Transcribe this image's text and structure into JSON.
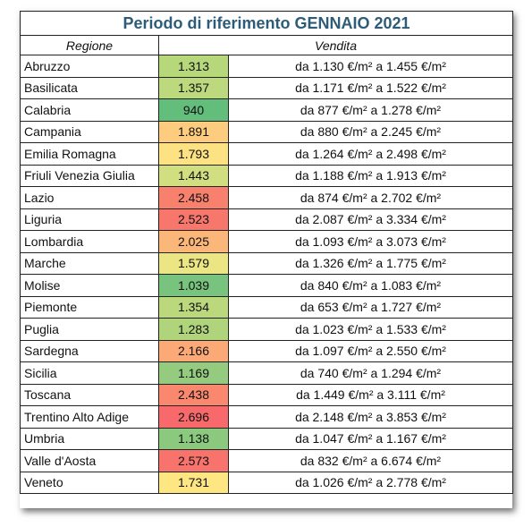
{
  "table": {
    "title": "Periodo di riferimento GENNAIO 2021",
    "headers": {
      "region": "Regione",
      "sale": "Vendita"
    },
    "rows": [
      {
        "region": "Abruzzo",
        "price": "1.313",
        "range": "da 1.130 €/m² a 1.455 €/m²",
        "color": "#b6d77a"
      },
      {
        "region": "Basilicata",
        "price": "1.357",
        "range": "da 1.171 €/m² a 1.522 €/m²",
        "color": "#bdd97d"
      },
      {
        "region": "Calabria",
        "price": "940",
        "range": "da 877 €/m² a 1.278 €/m²",
        "color": "#63be7b"
      },
      {
        "region": "Campania",
        "price": "1.891",
        "range": "da 880 €/m² a 2.245 €/m²",
        "color": "#fdcc7e"
      },
      {
        "region": "Emilia Romagna",
        "price": "1.793",
        "range": "da 1.264 €/m² a 2.498 €/m²",
        "color": "#fde283"
      },
      {
        "region": "Friuli Venezia Giulia",
        "price": "1.443",
        "range": "da 1.188 €/m² a 1.913 €/m²",
        "color": "#d1df81"
      },
      {
        "region": "Lazio",
        "price": "2.458",
        "range": "da 874 €/m² a 2.702 €/m²",
        "color": "#f8816d"
      },
      {
        "region": "Liguria",
        "price": "2.523",
        "range": "da 2.087 €/m² a 3.334 €/m²",
        "color": "#f8776c"
      },
      {
        "region": "Lombardia",
        "price": "2.025",
        "range": "da 1.093 €/m² a 3.073 €/m²",
        "color": "#fbb679"
      },
      {
        "region": "Marche",
        "price": "1.579",
        "range": "da 1.326 €/m² a 1.775 €/m²",
        "color": "#ebe584"
      },
      {
        "region": "Molise",
        "price": "1.039",
        "range": "da 840 €/m² a 1.083 €/m²",
        "color": "#78c37d"
      },
      {
        "region": "Piemonte",
        "price": "1.354",
        "range": "da 653 €/m² a 1.727 €/m²",
        "color": "#bcd87d"
      },
      {
        "region": "Puglia",
        "price": "1.283",
        "range": "da 1.023 €/m² a 1.533 €/m²",
        "color": "#afd47c"
      },
      {
        "region": "Sardegna",
        "price": "2.166",
        "range": "da 1.097 €/m² a 2.550 €/m²",
        "color": "#fbaa77"
      },
      {
        "region": "Sicilia",
        "price": "1.169",
        "range": "da 740 €/m² a 1.294 €/m²",
        "color": "#94cb7e"
      },
      {
        "region": "Toscana",
        "price": "2.438",
        "range": "da 1.449 €/m² a 3.111 €/m²",
        "color": "#f9886f"
      },
      {
        "region": "Trentino Alto Adige",
        "price": "2.696",
        "range": "da 2.148 €/m² a 3.853 €/m²",
        "color": "#f8696b"
      },
      {
        "region": "Umbria",
        "price": "1.138",
        "range": "da 1.047 €/m² a 1.167 €/m²",
        "color": "#8ac97e"
      },
      {
        "region": "Valle d'Aosta",
        "price": "2.573",
        "range": "da 832 €/m² a 6.674 €/m²",
        "color": "#f8736c"
      },
      {
        "region": "Veneto",
        "price": "1.731",
        "range": "da 1.026 €/m² a 2.778 €/m²",
        "color": "#fee783"
      }
    ]
  }
}
